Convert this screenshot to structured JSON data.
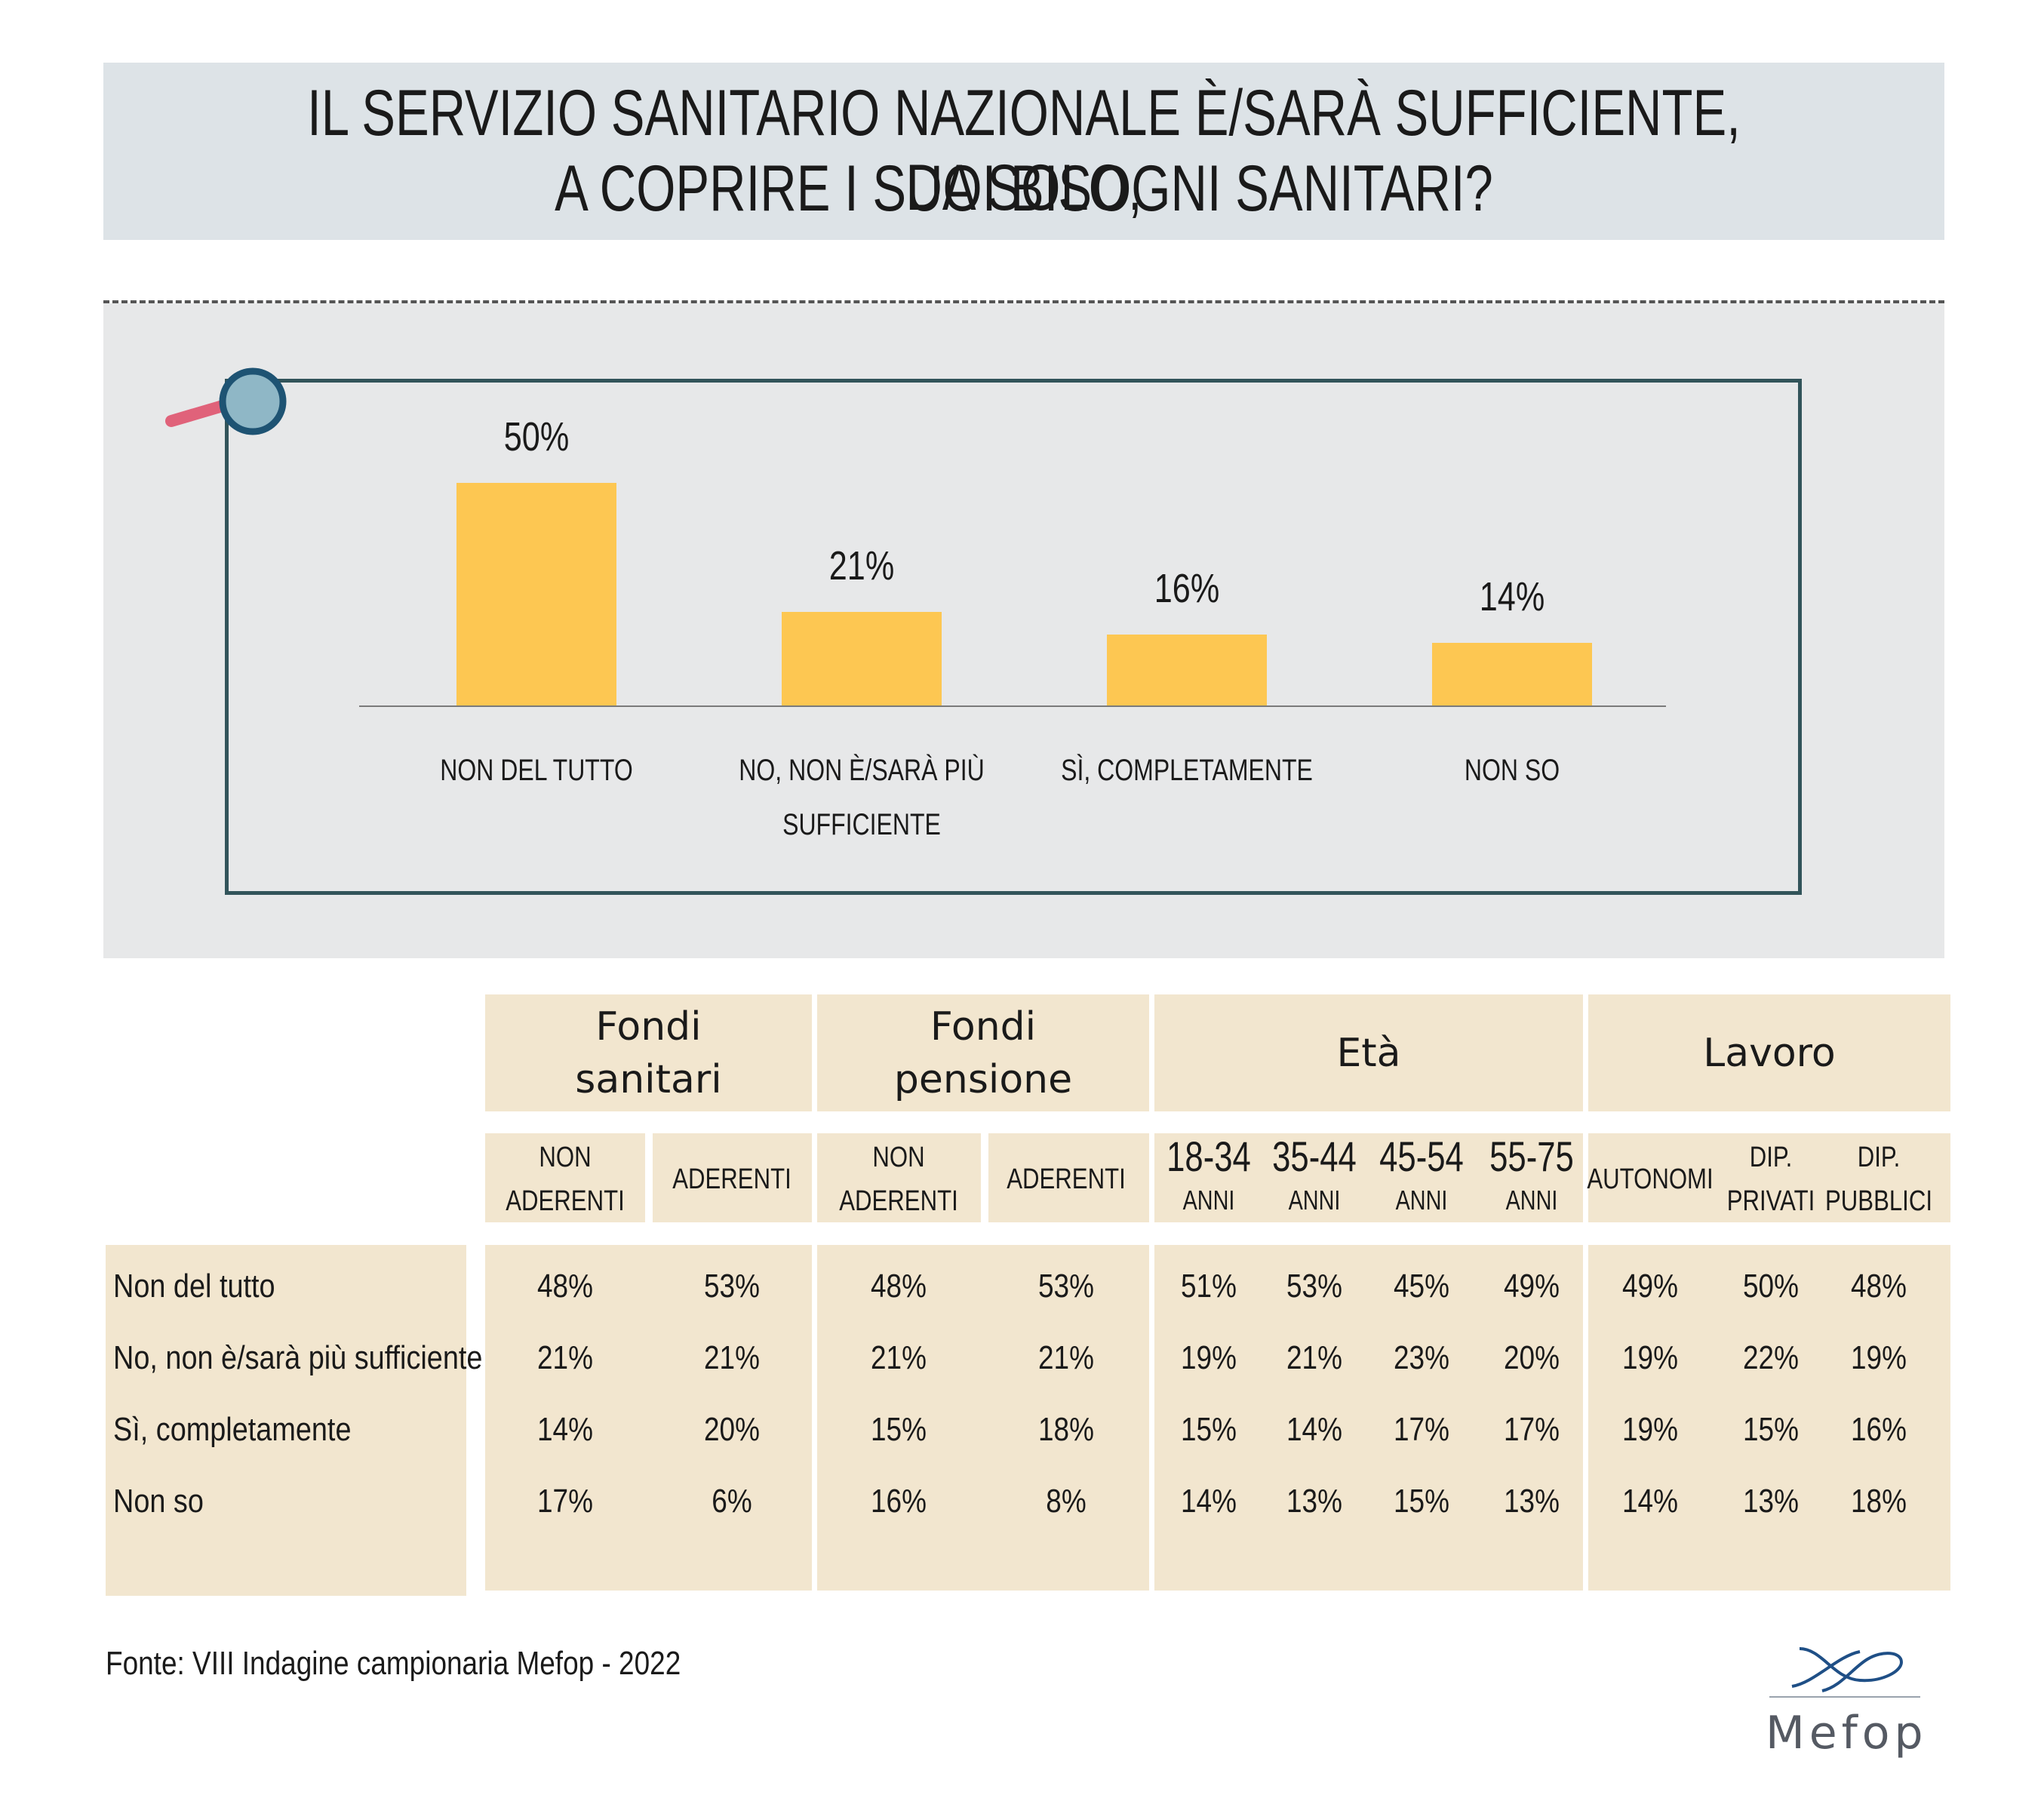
{
  "title": {
    "line1": "IL SERVIZIO SANITARIO NAZIONALE È/SARÀ SUFFICIENTE, DA SOLO,",
    "line2": "A COPRIRE I SUOI BISOGNI SANITARI?"
  },
  "chart_data": {
    "type": "bar",
    "title": "IL SERVIZIO SANITARIO NAZIONALE È/SARÀ SUFFICIENTE, DA SOLO, A COPRIRE I SUOI BISOGNI SANITARI?",
    "categories": [
      "NON DEL TUTTO",
      "NO, NON È/SARÀ PIÙ SUFFICIENTE",
      "SÌ, COMPLETAMENTE",
      "NON SO"
    ],
    "category_lines": [
      [
        "NON DEL TUTTO"
      ],
      [
        "NO, NON È/SARÀ PIÙ",
        "SUFFICIENTE"
      ],
      [
        "SÌ, COMPLETAMENTE"
      ],
      [
        "NON SO"
      ]
    ],
    "values": [
      50,
      21,
      16,
      14
    ],
    "value_labels": [
      "50%",
      "21%",
      "16%",
      "14%"
    ],
    "unit": "%",
    "ylim": [
      0,
      50
    ],
    "xlabel": "",
    "ylabel": "",
    "grid": false
  },
  "table": {
    "groups": [
      {
        "label_lines": [
          "Fondi",
          "sanitari"
        ]
      },
      {
        "label_lines": [
          "Fondi",
          "pensione"
        ]
      },
      {
        "label_lines": [
          "Età"
        ]
      },
      {
        "label_lines": [
          "Lavoro"
        ]
      }
    ],
    "subheaders": [
      [
        "NON",
        "ADERENTI"
      ],
      [
        "ADERENTI"
      ],
      [
        "NON",
        "ADERENTI"
      ],
      [
        "ADERENTI"
      ],
      [
        "18-34",
        "ANNI"
      ],
      [
        "35-44",
        "ANNI"
      ],
      [
        "45-54",
        "ANNI"
      ],
      [
        "55-75",
        "ANNI"
      ],
      [
        "AUTONOMI"
      ],
      [
        "DIP.",
        "PRIVATI"
      ],
      [
        "DIP.",
        "PUBBLICI"
      ]
    ],
    "rows": [
      {
        "label": "Non del tutto",
        "values": [
          "48%",
          "53%",
          "48%",
          "53%",
          "51%",
          "53%",
          "45%",
          "49%",
          "49%",
          "50%",
          "48%"
        ]
      },
      {
        "label": "No, non è/sarà più sufficiente",
        "values": [
          "21%",
          "21%",
          "21%",
          "21%",
          "19%",
          "21%",
          "23%",
          "20%",
          "19%",
          "22%",
          "19%"
        ]
      },
      {
        "label": "Sì, completamente",
        "values": [
          "14%",
          "20%",
          "15%",
          "18%",
          "15%",
          "14%",
          "17%",
          "17%",
          "19%",
          "15%",
          "16%"
        ]
      },
      {
        "label": "Non so",
        "values": [
          "17%",
          "6%",
          "16%",
          "8%",
          "14%",
          "13%",
          "15%",
          "13%",
          "14%",
          "13%",
          "18%"
        ]
      }
    ]
  },
  "source": "Fonte: VIII Indagine campionaria Mefop - 2022",
  "logo": {
    "name": "Mefop",
    "icon": "mefop-logo-icon"
  },
  "colors": {
    "bar": "#fdc752",
    "frame": "#32545a",
    "table_bg": "#f2e6cf",
    "title_bg": "#dde3e7",
    "chart_bg": "#e7e8e9",
    "magnifier_lens": "#8fb7c6",
    "magnifier_handle": "#e0627a"
  }
}
